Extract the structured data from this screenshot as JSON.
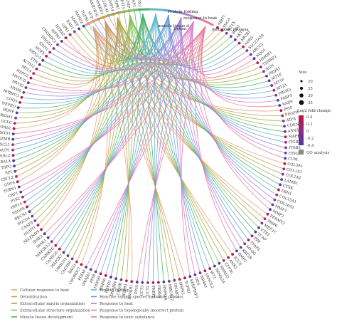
{
  "chart_data": {
    "type": "chord",
    "terms": [
      {
        "name": "Cellular response to heat",
        "color": "#e8a07c"
      },
      {
        "name": "Detoxification",
        "color": "#c9a14a"
      },
      {
        "name": "Extracellular matrix organization",
        "color": "#a3a84a"
      },
      {
        "name": "Extracellular structure organization",
        "color": "#86bd58"
      },
      {
        "name": "Muscle tissue development",
        "color": "#4fae6a"
      },
      {
        "name": "Protein folding",
        "color": "#5fb9c9"
      },
      {
        "name": "Reactive oxygen species metabolic process",
        "color": "#6a9fd8"
      },
      {
        "name": "Response to heat",
        "color": "#9a86d6"
      },
      {
        "name": "Response to topologically incorrect protein",
        "color": "#d97bc9"
      },
      {
        "name": "Response to toxic substance",
        "color": "#e87b9a"
      }
    ],
    "term_labels_on_arc": [
      "Protein folding",
      "response to heat",
      "muscle tissue d",
      "Detoxi",
      "metabolic process"
    ],
    "genes": [
      "SIRT1",
      "SNCA",
      "MT1X",
      "SOD2",
      "AKT1",
      "ABCB1",
      "ADH5",
      "SLC22A18",
      "ABCC2",
      "NQO1",
      "HMOX1",
      "TXNRD1",
      "RGN",
      "PRDX1",
      "MT1E",
      "MT1F",
      "MT2A",
      "PRDX3",
      "FABP5",
      "RAD9",
      "PPIF",
      "PDGFB",
      "ATF4",
      "CDKN1A",
      "ASNS",
      "MAPK1",
      "ITGB3",
      "ITGB5",
      "HTR2",
      "CUM",
      "COL3A1",
      "COL1A1",
      "COL1A2",
      "LAMB1",
      "CTSK",
      "FBN1",
      "COL15A1",
      "COL16A1",
      "MMP3",
      "MMP2",
      "FERMT2",
      "TRIP6",
      "MEF2C",
      "ETS2",
      "TCAP",
      "PPP",
      "TFAP4",
      "MYOG",
      "KAT2B",
      "BMP2",
      "SGCE",
      "ANK2",
      "ZFP36",
      "SMAD3",
      "SEMA3A",
      "WT1",
      "VANGL2",
      "NR4A1",
      "DES",
      "SERPINF1",
      "TGFB2",
      "HSPA5",
      "DNAJC1",
      "MBOAT2",
      "HSPA1A",
      "FKBP4",
      "FKBP5",
      "CCT2",
      "CCT3",
      "PPIA",
      "DNAJB1",
      "HSPB1",
      "CRYAB",
      "DNAJB4",
      "HSPD1",
      "HSPA6",
      "HSP90",
      "PPIB",
      "DNAJA1",
      "PDIA6",
      "CHORDC1",
      "BAG3",
      "CACYBP",
      "UBQLN1",
      "MAP2K7",
      "CAMK2D",
      "CAMK2G",
      "MAP3K13",
      "IRAK1",
      "IRAK2",
      "SELENOS",
      "NUDT1",
      "CASP3",
      "PDCD4",
      "BECN1",
      "VEGFA",
      "HIF1A",
      "PTK2",
      "CRP1",
      "THBS1",
      "GDF6",
      "CXCL2",
      "SP1",
      "TSPO",
      "ADRA1A",
      "DERL2",
      "AUP1",
      "CXCL1",
      "GZMB",
      "SOD1",
      "EPAS1",
      "GCLC",
      "PRKAA1",
      "BDNF",
      "NEPRO",
      "COQ5",
      "MYBPC3",
      "MYH6",
      "MYOD",
      "MYOCD",
      "HSPG2",
      "MYL4",
      "ACTN2",
      "TTN",
      "NKX2-5",
      "HOPX",
      "EDN1",
      "FHOD1",
      "CHORDC2",
      "AIFM1",
      "HTRA2",
      "GPX1",
      "RAD1",
      "MAFF",
      "HAND2",
      "TGFBI",
      "VCP",
      "AKR1B10",
      "ANKRD1",
      "KLHL41",
      "MMP14",
      "HSPB7",
      "DDIT3",
      "TXNIP",
      "TRAP1",
      "DDX3"
    ],
    "size_legend": {
      "title": "Size",
      "values": [
        20,
        25,
        30,
        35
      ]
    },
    "color_legend": {
      "title": "Log2 fold change",
      "ticks": [
        0.4,
        0.2,
        0,
        -0.2,
        -0.4
      ],
      "high_color": "#c0143c",
      "low_color": "#4b3a9e"
    },
    "go_legend_label": "GO analysis"
  }
}
